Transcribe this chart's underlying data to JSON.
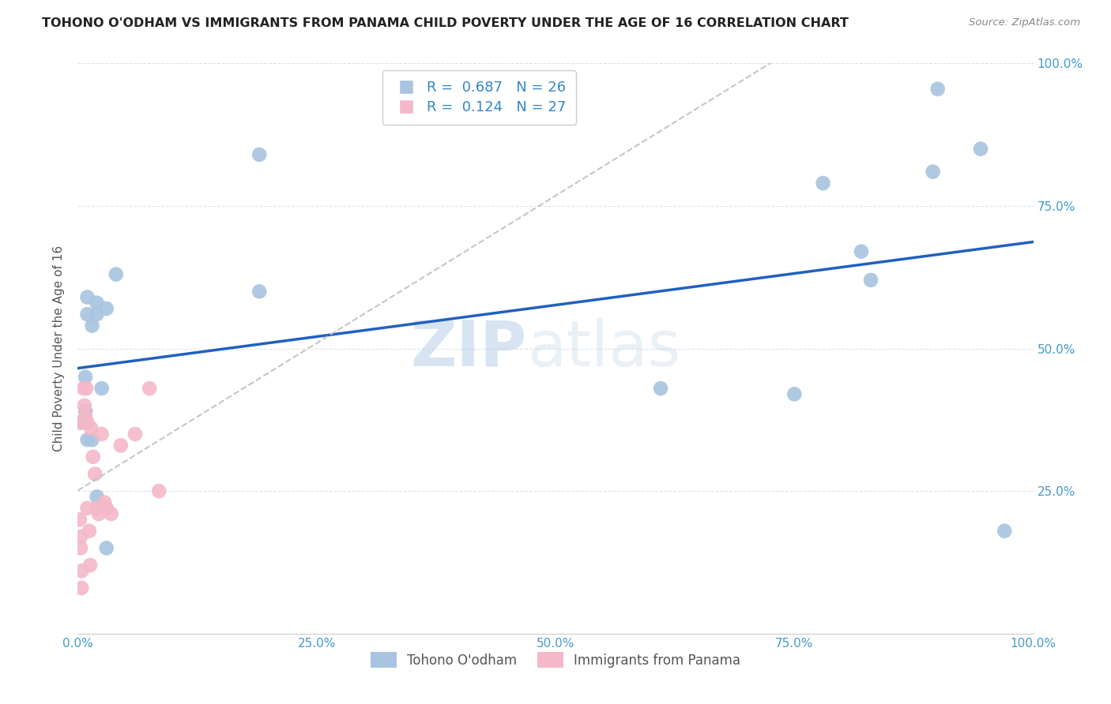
{
  "title": "TOHONO O'ODHAM VS IMMIGRANTS FROM PANAMA CHILD POVERTY UNDER THE AGE OF 16 CORRELATION CHART",
  "source": "Source: ZipAtlas.com",
  "ylabel": "Child Poverty Under the Age of 16",
  "xlim": [
    0,
    1
  ],
  "ylim": [
    0,
    1
  ],
  "xticks": [
    0,
    0.25,
    0.5,
    0.75,
    1.0
  ],
  "yticks": [
    0.25,
    0.5,
    0.75,
    1.0
  ],
  "xticklabels": [
    "0.0%",
    "25.0%",
    "50.0%",
    "75.0%",
    "100.0%"
  ],
  "yticklabels": [
    "25.0%",
    "50.0%",
    "75.0%",
    "100.0%"
  ],
  "legend1_R": "0.687",
  "legend1_N": "26",
  "legend2_R": "0.124",
  "legend2_N": "27",
  "legend1_label": "Tohono O'odham",
  "legend2_label": "Immigrants from Panama",
  "blue_color": "#a8c4e0",
  "pink_color": "#f4b8c8",
  "line_blue": "#2060c0",
  "line_pink": "#e08090",
  "watermark_zip": "ZIP",
  "watermark_atlas": "atlas",
  "tohono_x": [
    0.01,
    0.01,
    0.015,
    0.02,
    0.02,
    0.025,
    0.03,
    0.008,
    0.008,
    0.01,
    0.015,
    0.02,
    0.19,
    0.19,
    0.61,
    0.75,
    0.78,
    0.82,
    0.83,
    0.895,
    0.9,
    0.945,
    0.97,
    0.005,
    0.04,
    0.03
  ],
  "tohono_y": [
    0.59,
    0.56,
    0.54,
    0.56,
    0.58,
    0.43,
    0.57,
    0.45,
    0.39,
    0.34,
    0.34,
    0.24,
    0.84,
    0.6,
    0.43,
    0.42,
    0.79,
    0.67,
    0.62,
    0.81,
    0.955,
    0.85,
    0.18,
    0.37,
    0.63,
    0.15
  ],
  "panama_x": [
    0.002,
    0.002,
    0.003,
    0.003,
    0.004,
    0.004,
    0.006,
    0.007,
    0.008,
    0.009,
    0.01,
    0.01,
    0.012,
    0.013,
    0.014,
    0.016,
    0.018,
    0.02,
    0.022,
    0.025,
    0.028,
    0.03,
    0.035,
    0.045,
    0.06,
    0.075,
    0.085
  ],
  "panama_y": [
    0.37,
    0.2,
    0.17,
    0.15,
    0.11,
    0.08,
    0.43,
    0.4,
    0.38,
    0.43,
    0.37,
    0.22,
    0.18,
    0.12,
    0.36,
    0.31,
    0.28,
    0.22,
    0.21,
    0.35,
    0.23,
    0.22,
    0.21,
    0.33,
    0.35,
    0.43,
    0.25
  ]
}
